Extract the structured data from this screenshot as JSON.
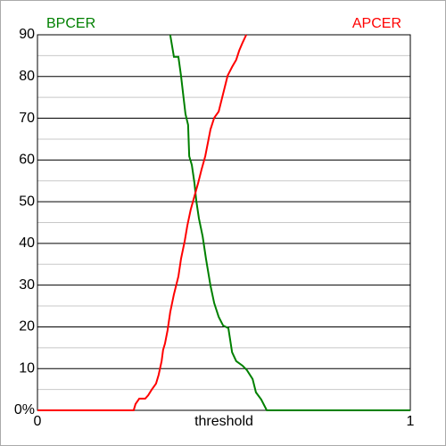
{
  "chart_data": {
    "type": "line",
    "xlabel": "threshold",
    "xlim": [
      0,
      1
    ],
    "xticks": [
      0,
      1
    ],
    "ylim": [
      0,
      90
    ],
    "yticks": [
      {
        "value": 0,
        "label": "0%"
      },
      10,
      20,
      30,
      40,
      50,
      60,
      70,
      80,
      90
    ],
    "minor_yticks": [
      5,
      15,
      25,
      35,
      45,
      55,
      65,
      75,
      85
    ],
    "grid": true,
    "series": [
      {
        "name": "BPCER",
        "color": "#008000",
        "legend": "upper left",
        "x": [
          0.356,
          0.366,
          0.378,
          0.385,
          0.392,
          0.397,
          0.404,
          0.407,
          0.414,
          0.421,
          0.426,
          0.433,
          0.443,
          0.452,
          0.464,
          0.474,
          0.486,
          0.498,
          0.512,
          0.522,
          0.533,
          0.55,
          0.562,
          0.577,
          0.586,
          0.6,
          0.615,
          1
        ],
        "values": [
          90,
          84.7,
          84.7,
          80.2,
          74.8,
          71.0,
          68.4,
          60.9,
          58.8,
          54.5,
          50.2,
          46.0,
          41.7,
          36.3,
          29.9,
          25.7,
          22.4,
          20.3,
          19.7,
          13.9,
          11.8,
          10.7,
          9.6,
          7.5,
          4.3,
          2.6,
          0,
          0
        ]
      },
      {
        "name": "APCER",
        "color": "#ff0000",
        "legend": "upper right",
        "x": [
          0,
          0.258,
          0.263,
          0.273,
          0.289,
          0.297,
          0.306,
          0.318,
          0.325,
          0.333,
          0.337,
          0.342,
          0.349,
          0.356,
          0.366,
          0.378,
          0.385,
          0.395,
          0.402,
          0.411,
          0.421,
          0.431,
          0.44,
          0.45,
          0.457,
          0.464,
          0.474,
          0.486,
          0.498,
          0.51,
          0.522,
          0.533,
          0.541,
          0.55,
          0.56
        ],
        "values": [
          0,
          0,
          1.5,
          2.8,
          2.8,
          3.6,
          4.9,
          6.4,
          8.5,
          11.8,
          14.5,
          16.0,
          19.2,
          23.5,
          27.8,
          32.1,
          36.3,
          40.6,
          44.3,
          48.1,
          51.3,
          54.5,
          57.7,
          60.9,
          64.1,
          67.3,
          70.1,
          71.6,
          75.9,
          80.2,
          82.3,
          84.0,
          86.2,
          88.1,
          90
        ]
      }
    ]
  }
}
